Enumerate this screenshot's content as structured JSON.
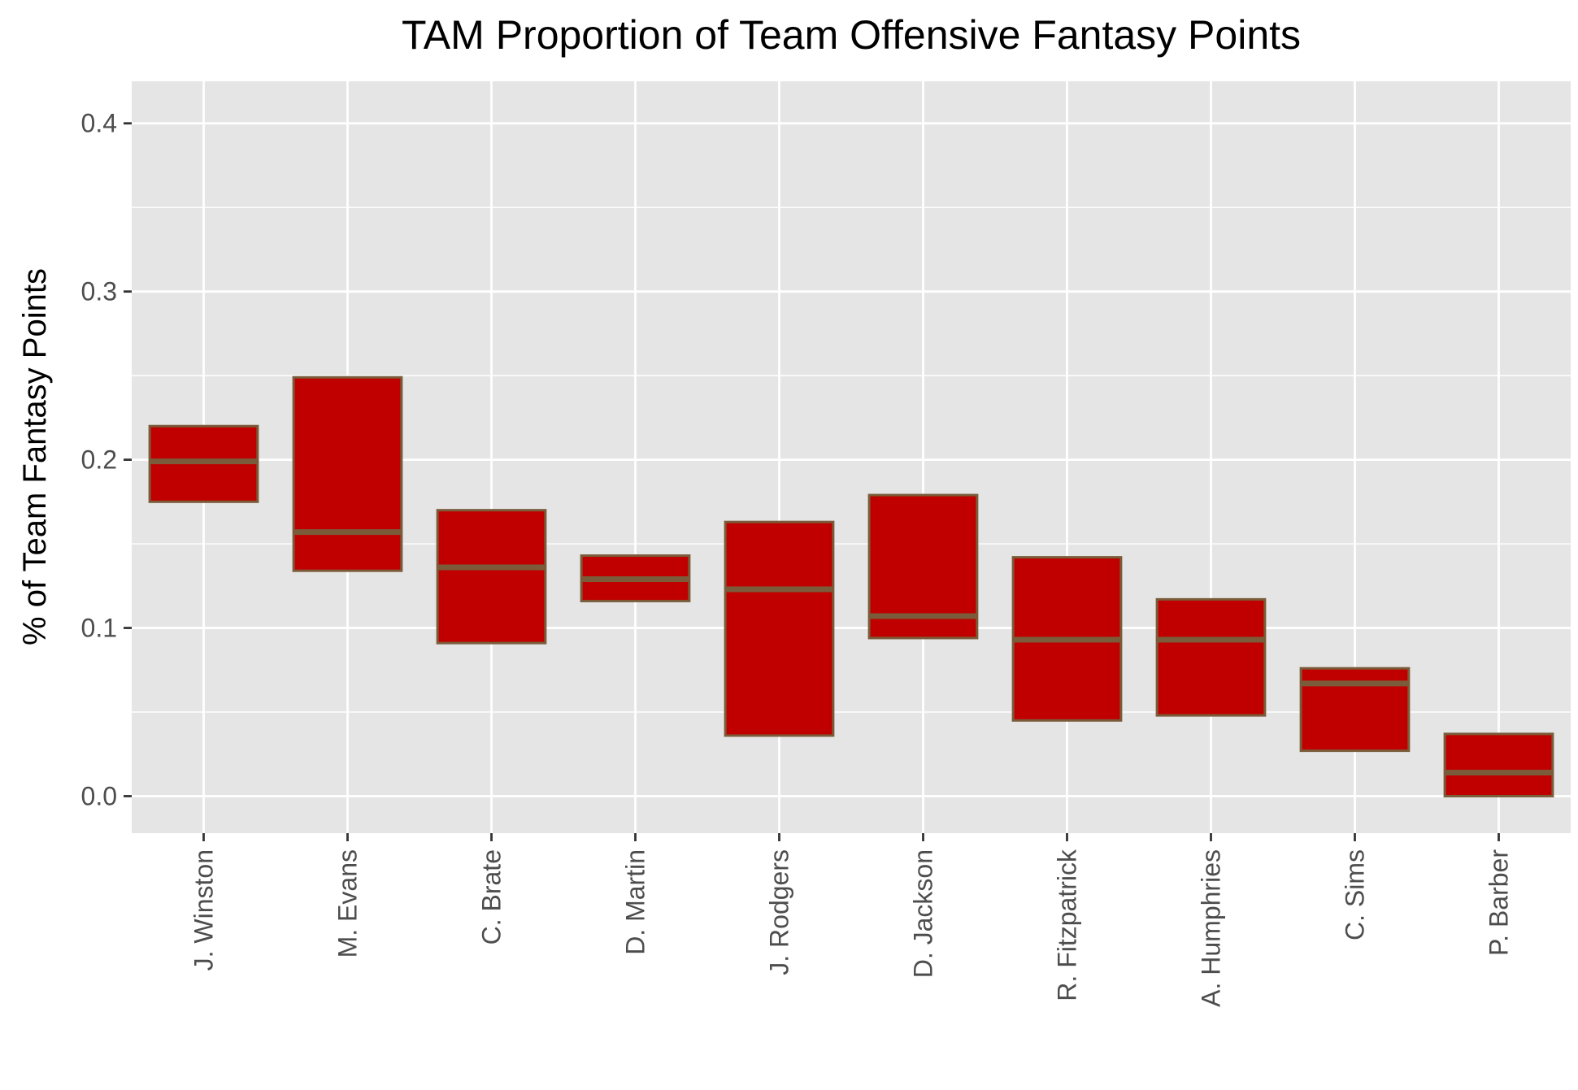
{
  "chart_data": {
    "type": "boxplot",
    "title": "TAM Proportion of Team Offensive Fantasy Points",
    "xlabel": "",
    "ylabel": "% of Team Fantasy Points",
    "ylim": [
      -0.022,
      0.425
    ],
    "yticks": [
      0.0,
      0.1,
      0.2,
      0.3,
      0.4
    ],
    "ytick_labels": [
      "0.0",
      "0.1",
      "0.2",
      "0.3",
      "0.4"
    ],
    "grid": true,
    "legend": "none",
    "categories": [
      "J. Winston",
      "M. Evans",
      "C. Brate",
      "D. Martin",
      "J. Rodgers",
      "D. Jackson",
      "R. Fitzpatrick",
      "A. Humphries",
      "C. Sims",
      "P. Barber"
    ],
    "boxes": [
      {
        "low": 0.175,
        "median": 0.199,
        "high": 0.22
      },
      {
        "low": 0.134,
        "median": 0.157,
        "high": 0.249
      },
      {
        "low": 0.091,
        "median": 0.136,
        "high": 0.17
      },
      {
        "low": 0.116,
        "median": 0.129,
        "high": 0.143
      },
      {
        "low": 0.036,
        "median": 0.123,
        "high": 0.163
      },
      {
        "low": 0.094,
        "median": 0.107,
        "high": 0.179
      },
      {
        "low": 0.045,
        "median": 0.093,
        "high": 0.142
      },
      {
        "low": 0.048,
        "median": 0.093,
        "high": 0.117
      },
      {
        "low": 0.027,
        "median": 0.067,
        "high": 0.076
      },
      {
        "low": 0.0,
        "median": 0.014,
        "high": 0.037
      }
    ],
    "colors": {
      "box_fill": "#C00000",
      "box_stroke": "#7A5C3A",
      "panel_background": "#E5E5E5",
      "grid": "#FFFFFF"
    }
  }
}
